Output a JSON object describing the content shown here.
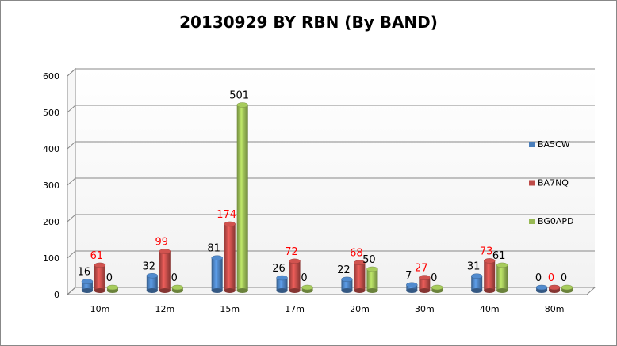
{
  "chart_data": {
    "type": "bar",
    "title": "20130929 BY RBN (By BAND)",
    "categories": [
      "10m",
      "12m",
      "15m",
      "17m",
      "20m",
      "30m",
      "40m",
      "80m"
    ],
    "series": [
      {
        "name": "BA5CW",
        "color": "#4a7ebb",
        "label_color": "#000000",
        "values": [
          16,
          32,
          81,
          26,
          22,
          7,
          31,
          0
        ]
      },
      {
        "name": "BA7NQ",
        "color": "#be4b48",
        "label_color": "#ff0000",
        "values": [
          61,
          99,
          174,
          72,
          68,
          27,
          73,
          0
        ]
      },
      {
        "name": "BG0APD",
        "color": "#98b954",
        "label_color": "#000000",
        "values": [
          0,
          0,
          501,
          0,
          50,
          0,
          61,
          0
        ]
      }
    ],
    "ylim": [
      0,
      600
    ],
    "yticks": [
      0,
      100,
      200,
      300,
      400,
      500,
      600
    ],
    "grid": true,
    "legend": "right"
  }
}
